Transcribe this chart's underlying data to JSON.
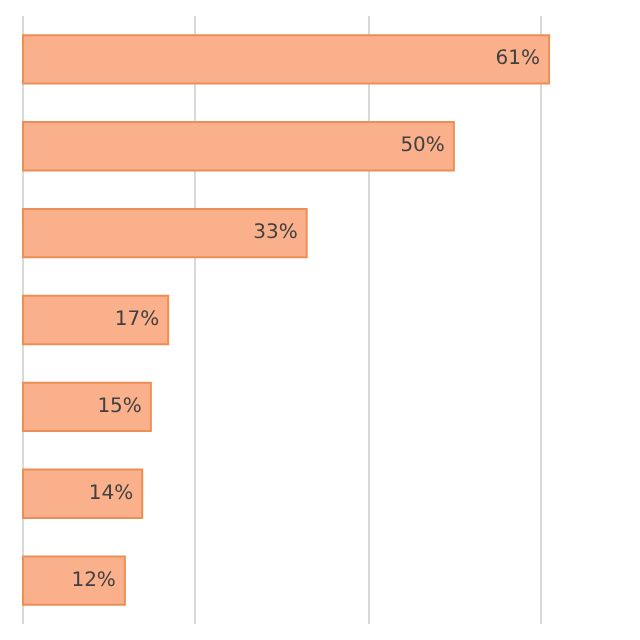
{
  "chart_data": {
    "type": "bar",
    "orientation": "horizontal",
    "categories": [
      null,
      null,
      null,
      null,
      null,
      null,
      null
    ],
    "values": [
      61,
      50,
      33,
      17,
      15,
      14,
      12
    ],
    "value_labels": [
      "61%",
      "50%",
      "33%",
      "17%",
      "15%",
      "14%",
      "12%"
    ],
    "color": "#fbb08c",
    "xticks": [
      {
        "value": 0,
        "label": null
      },
      {
        "value": 20,
        "label": null
      },
      {
        "value": 40,
        "label": null
      },
      {
        "value": 60,
        "label": null
      }
    ],
    "grid": "x"
  }
}
